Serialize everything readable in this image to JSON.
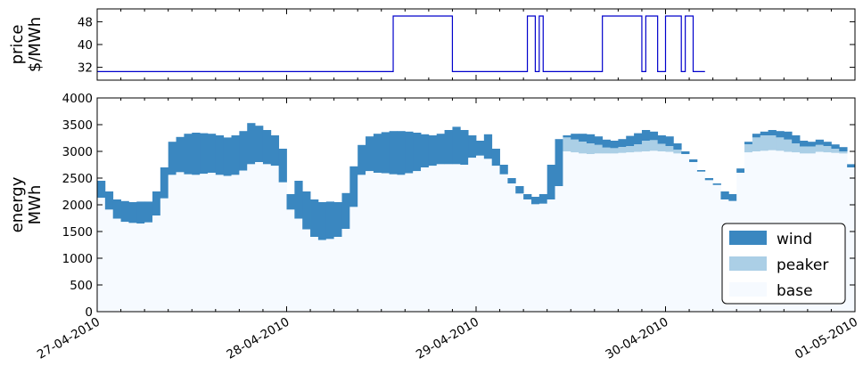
{
  "chart_data": [
    {
      "type": "line",
      "ylabel_line1": "price",
      "ylabel_line2": "$/MWh",
      "yticks": [
        32,
        40,
        48
      ],
      "ylim": [
        27.5,
        52.5
      ],
      "line_color": "#0000cc",
      "x_start": "2010-04-27 00:00",
      "x_end": "2010-05-01 00:00",
      "step_hours": [
        0.0,
        37.0,
        37.5,
        45.0,
        54.5,
        55.5,
        56.0,
        56.5,
        64.0,
        69.0,
        69.5,
        71.0,
        72.0,
        74.0,
        74.5,
        75.5,
        76.0,
        77.0
      ],
      "step_prices": [
        30.5,
        30.5,
        50,
        30.5,
        50,
        30.5,
        50,
        30.5,
        50,
        30.5,
        50,
        30.5,
        50,
        30.5,
        50,
        30.5,
        30.5,
        30.5
      ]
    },
    {
      "type": "area",
      "ylabel_line1": "energy",
      "ylabel_line2": "MWh",
      "yticks": [
        0,
        500,
        1000,
        1500,
        2000,
        2500,
        3000,
        3500,
        4000
      ],
      "ylim": [
        0,
        4000
      ],
      "xticks": [
        "27-04-2010",
        "28-04-2010",
        "29-04-2010",
        "30-04-2010",
        "01-05-2010"
      ],
      "hours": [
        0,
        1,
        2,
        3,
        4,
        5,
        6,
        7,
        8,
        9,
        10,
        11,
        12,
        13,
        14,
        15,
        16,
        17,
        18,
        19,
        20,
        21,
        22,
        23,
        24,
        25,
        26,
        27,
        28,
        29,
        30,
        31,
        32,
        33,
        34,
        35,
        36,
        37,
        38,
        39,
        40,
        41,
        42,
        43,
        44,
        45,
        46,
        47,
        48,
        49,
        50,
        51,
        52,
        53,
        54,
        55,
        56,
        57,
        58,
        59,
        60,
        61,
        62,
        63,
        64,
        65,
        66,
        67,
        68,
        69,
        70,
        71,
        72,
        73,
        74,
        75,
        76,
        77,
        78,
        79,
        80,
        81,
        82,
        83,
        84,
        85,
        86,
        87,
        88,
        89,
        90,
        91,
        92,
        93,
        94,
        95
      ],
      "series": [
        {
          "name": "wind",
          "color": "#3a87c0",
          "top": [
            2450,
            2250,
            2100,
            2070,
            2050,
            2060,
            2060,
            2250,
            2700,
            3180,
            3270,
            3330,
            3350,
            3340,
            3330,
            3300,
            3260,
            3300,
            3380,
            3530,
            3480,
            3400,
            3300,
            3050,
            2200,
            2450,
            2250,
            2100,
            2050,
            2060,
            2050,
            2220,
            2720,
            3120,
            3280,
            3330,
            3360,
            3380,
            3380,
            3370,
            3350,
            3320,
            3300,
            3330,
            3400,
            3460,
            3400,
            3300,
            3200,
            3320,
            3050,
            2750,
            2500,
            2350,
            2200,
            2150,
            2200,
            2750,
            3230,
            3300,
            3330,
            3330,
            3320,
            3280,
            3220,
            3200,
            3230,
            3290,
            3340,
            3400,
            3370,
            3300,
            3280,
            3150,
            3000,
            2850,
            2650,
            2500,
            2400,
            2250,
            2200,
            2680,
            3180,
            3330,
            3370,
            3400,
            3380,
            3370,
            3300,
            3200,
            3180,
            3220,
            3180,
            3130,
            3080,
            2760
          ]
        },
        {
          "name": "peaker",
          "color": "#abcfe6",
          "top": [
            2130,
            1910,
            1740,
            1680,
            1660,
            1650,
            1670,
            1800,
            2120,
            2560,
            2610,
            2570,
            2560,
            2580,
            2600,
            2560,
            2540,
            2560,
            2640,
            2760,
            2800,
            2760,
            2730,
            2420,
            1910,
            1740,
            1540,
            1400,
            1340,
            1360,
            1400,
            1550,
            1960,
            2560,
            2630,
            2600,
            2590,
            2570,
            2560,
            2590,
            2630,
            2700,
            2730,
            2760,
            2760,
            2760,
            2750,
            2880,
            2920,
            2860,
            2730,
            2570,
            2400,
            2210,
            2100,
            2010,
            2020,
            2100,
            2350,
            3260,
            3220,
            3180,
            3150,
            3120,
            3070,
            3060,
            3080,
            3100,
            3130,
            3200,
            3210,
            3140,
            3100,
            3030,
            2950,
            2800,
            2620,
            2460,
            2370,
            2100,
            2070,
            2600,
            3130,
            3260,
            3300,
            3300,
            3260,
            3220,
            3150,
            3090,
            3090,
            3120,
            3100,
            3050,
            3000,
            2700
          ]
        },
        {
          "name": "base",
          "color": "#f6faff",
          "top": [
            2130,
            1910,
            1740,
            1680,
            1660,
            1650,
            1670,
            1800,
            2120,
            2560,
            2610,
            2570,
            2560,
            2580,
            2600,
            2560,
            2540,
            2560,
            2640,
            2760,
            2800,
            2760,
            2730,
            2420,
            1910,
            1740,
            1540,
            1400,
            1340,
            1360,
            1400,
            1550,
            1960,
            2560,
            2630,
            2600,
            2590,
            2570,
            2560,
            2590,
            2630,
            2700,
            2730,
            2760,
            2760,
            2760,
            2750,
            2880,
            2920,
            2860,
            2730,
            2570,
            2400,
            2210,
            2100,
            2010,
            2020,
            2100,
            2350,
            3000,
            2980,
            2960,
            2950,
            2960,
            2960,
            2960,
            2970,
            2980,
            2990,
            3000,
            3010,
            3000,
            2990,
            2960,
            2950,
            2800,
            2620,
            2460,
            2370,
            2100,
            2070,
            2600,
            2980,
            3000,
            3010,
            3020,
            3010,
            2990,
            2980,
            2960,
            2960,
            2990,
            2980,
            2970,
            2960,
            2700
          ]
        }
      ],
      "legend": {
        "placement": "lower-right",
        "entries": [
          "wind",
          "peaker",
          "base"
        ]
      }
    }
  ]
}
